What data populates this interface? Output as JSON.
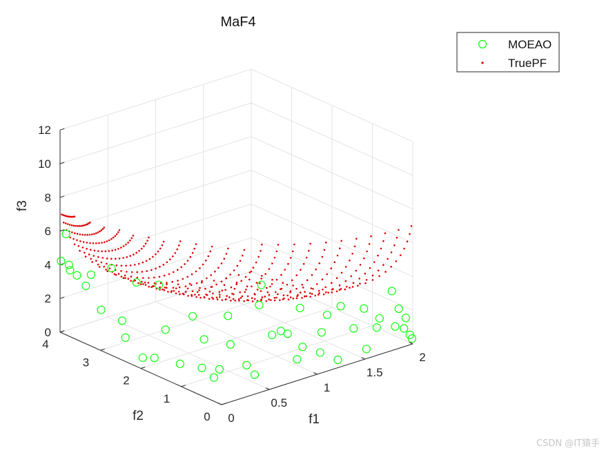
{
  "chart_data": {
    "type": "scatter",
    "title": "MaF4",
    "xlabel": "f1",
    "ylabel": "f2",
    "zlabel": "f3",
    "xlim": [
      0,
      2
    ],
    "ylim": [
      0,
      4
    ],
    "zlim": [
      0,
      12
    ],
    "xticks": [
      "0",
      "0.5",
      "1",
      "1.5",
      "2"
    ],
    "yticks": [
      "0",
      "1",
      "2",
      "3",
      "4"
    ],
    "zticks": [
      "0",
      "2",
      "4",
      "6",
      "8",
      "10",
      "12"
    ],
    "grid": true,
    "legend_position": "top-right",
    "true_pf_formula": "f1 = 2(1 - cos(pi*u/2)), f2 = 4(1 - sin(pi*u/2)*cos(pi*v/2)), f3 = 8(1 - sin(pi*u/2)*sin(pi*v/2)), u,v in [0,1]",
    "series": [
      {
        "name": "MOEAO",
        "marker": "open-circle",
        "color": "#00ff00",
        "points": [
          [
            0.02,
            3.28,
            4.15
          ],
          [
            0.01,
            4.0,
            4.2
          ],
          [
            0.02,
            3.9,
            5.9
          ],
          [
            0.03,
            3.85,
            4.1
          ],
          [
            0.05,
            3.7,
            3.6
          ],
          [
            0.02,
            3.8,
            3.85
          ],
          [
            0.1,
            3.6,
            3.0
          ],
          [
            0.05,
            3.1,
            2.2
          ],
          [
            0.2,
            3.2,
            4.3
          ],
          [
            0.1,
            2.7,
            1.9
          ],
          [
            0.05,
            2.5,
            1.2
          ],
          [
            0.4,
            2.5,
            3.7
          ],
          [
            0.25,
            2.7,
            3.9
          ],
          [
            0.02,
            2.0,
            0.6
          ],
          [
            0.1,
            1.9,
            0.55
          ],
          [
            0.3,
            2.1,
            1.65
          ],
          [
            0.5,
            1.9,
            2.3
          ],
          [
            0.2,
            1.5,
            0.45
          ],
          [
            0.45,
            1.5,
            1.45
          ],
          [
            0.6,
            1.2,
            1.2
          ],
          [
            0.7,
            1.5,
            2.4
          ],
          [
            0.4,
            1.0,
            0.3
          ],
          [
            0.9,
            1.2,
            3.0
          ],
          [
            1.0,
            0.9,
            1.6
          ],
          [
            0.95,
            1.0,
            1.35
          ],
          [
            1.05,
            0.85,
            1.4
          ],
          [
            1.2,
            0.9,
            2.6
          ],
          [
            1.1,
            0.6,
            0.8
          ],
          [
            1.3,
            0.6,
            1.3
          ],
          [
            1.0,
            0.5,
            0.35
          ],
          [
            1.4,
            0.7,
            2.05
          ],
          [
            1.5,
            0.6,
            2.5
          ],
          [
            1.55,
            0.4,
            1.3
          ],
          [
            1.7,
            0.5,
            2.1
          ],
          [
            1.75,
            0.3,
            1.1
          ],
          [
            1.8,
            0.35,
            1.5
          ],
          [
            1.95,
            0.4,
            2.8
          ],
          [
            1.9,
            0.2,
            1.0
          ],
          [
            1.95,
            0.1,
            0.9
          ],
          [
            1.98,
            0.3,
            1.8
          ],
          [
            1.99,
            0.05,
            0.5
          ],
          [
            2.0,
            0.02,
            0.3
          ],
          [
            1.99,
            0.15,
            1.4
          ],
          [
            1.6,
            0.2,
            0.2
          ],
          [
            1.3,
            0.2,
            0.1
          ],
          [
            1.2,
            0.4,
            0.5
          ],
          [
            0.6,
            0.6,
            0.05
          ],
          [
            1.05,
            1.5,
            3.6
          ],
          [
            0.6,
            0.8,
            0.4
          ],
          [
            0.3,
            0.9,
            0.1
          ],
          [
            0.3,
            1.2,
            0.35
          ]
        ]
      },
      {
        "name": "TruePF",
        "marker": "dot",
        "color": "#dd0000"
      }
    ]
  },
  "watermark": "CSDN @IT猿手"
}
